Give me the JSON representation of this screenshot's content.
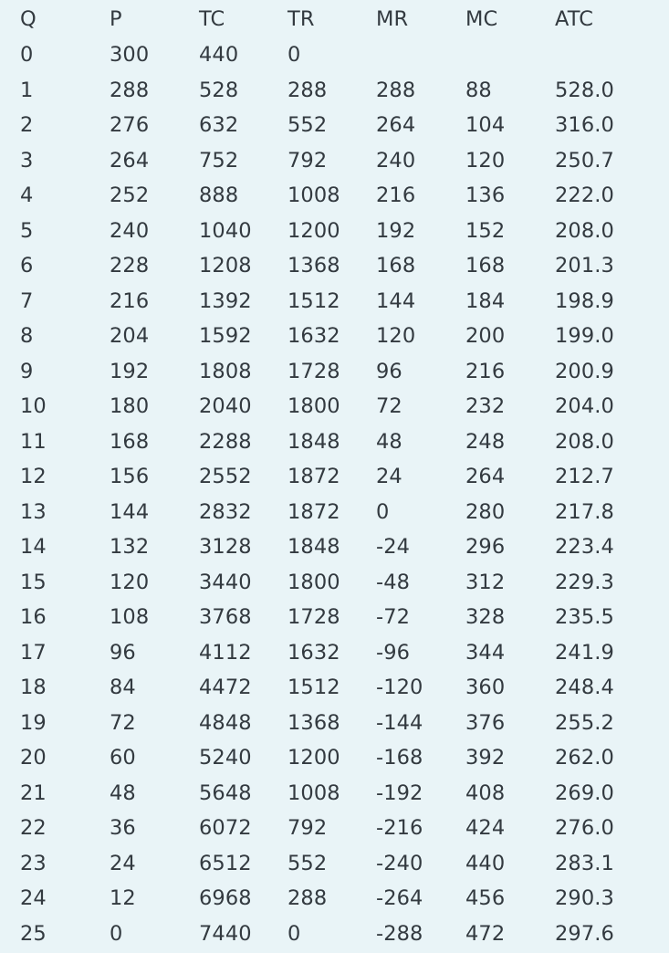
{
  "table": {
    "headers": [
      "Q",
      "P",
      "TC",
      "TR",
      "MR",
      "MC",
      "ATC"
    ],
    "rows": [
      [
        "0",
        "300",
        "440",
        "0",
        "",
        "",
        ""
      ],
      [
        "1",
        "288",
        "528",
        "288",
        "288",
        "88",
        "528.0"
      ],
      [
        "2",
        "276",
        "632",
        "552",
        "264",
        "104",
        "316.0"
      ],
      [
        "3",
        "264",
        "752",
        "792",
        "240",
        "120",
        "250.7"
      ],
      [
        "4",
        "252",
        "888",
        "1008",
        "216",
        "136",
        "222.0"
      ],
      [
        "5",
        "240",
        "1040",
        "1200",
        "192",
        "152",
        "208.0"
      ],
      [
        "6",
        "228",
        "1208",
        "1368",
        "168",
        "168",
        "201.3"
      ],
      [
        "7",
        "216",
        "1392",
        "1512",
        "144",
        "184",
        "198.9"
      ],
      [
        "8",
        "204",
        "1592",
        "1632",
        "120",
        "200",
        "199.0"
      ],
      [
        "9",
        "192",
        "1808",
        "1728",
        "96",
        "216",
        "200.9"
      ],
      [
        "10",
        "180",
        "2040",
        "1800",
        "72",
        "232",
        "204.0"
      ],
      [
        "11",
        "168",
        "2288",
        "1848",
        "48",
        "248",
        "208.0"
      ],
      [
        "12",
        "156",
        "2552",
        "1872",
        "24",
        "264",
        "212.7"
      ],
      [
        "13",
        "144",
        "2832",
        "1872",
        "0",
        "280",
        "217.8"
      ],
      [
        "14",
        "132",
        "3128",
        "1848",
        "-24",
        "296",
        "223.4"
      ],
      [
        "15",
        "120",
        "3440",
        "1800",
        "-48",
        "312",
        "229.3"
      ],
      [
        "16",
        "108",
        "3768",
        "1728",
        "-72",
        "328",
        "235.5"
      ],
      [
        "17",
        "96",
        "4112",
        "1632",
        "-96",
        "344",
        "241.9"
      ],
      [
        "18",
        "84",
        "4472",
        "1512",
        "-120",
        "360",
        "248.4"
      ],
      [
        "19",
        "72",
        "4848",
        "1368",
        "-144",
        "376",
        "255.2"
      ],
      [
        "20",
        "60",
        "5240",
        "1200",
        "-168",
        "392",
        "262.0"
      ],
      [
        "21",
        "48",
        "5648",
        "1008",
        "-192",
        "408",
        "269.0"
      ],
      [
        "22",
        "36",
        "6072",
        "792",
        "-216",
        "424",
        "276.0"
      ],
      [
        "23",
        "24",
        "6512",
        "552",
        "-240",
        "440",
        "283.1"
      ],
      [
        "24",
        "12",
        "6968",
        "288",
        "-264",
        "456",
        "290.3"
      ],
      [
        "25",
        "0",
        "7440",
        "0",
        "-288",
        "472",
        "297.6"
      ]
    ]
  }
}
